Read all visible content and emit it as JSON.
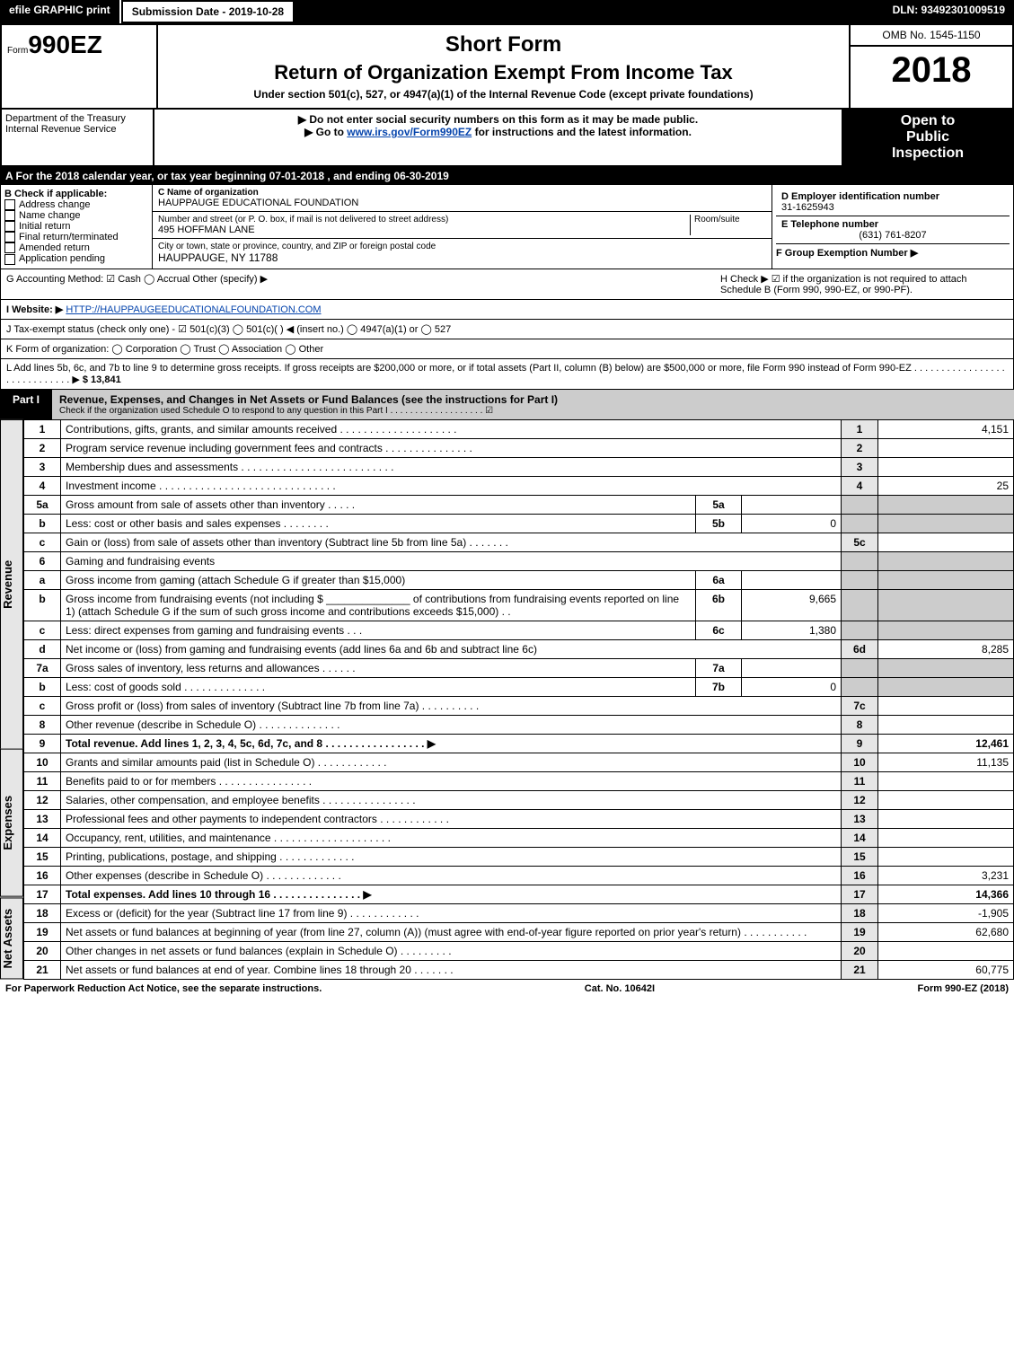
{
  "topbar": {
    "efile": "efile GRAPHIC print",
    "submission": "Submission Date - 2019-10-28",
    "dln": "DLN: 93492301009519"
  },
  "header": {
    "form_prefix": "Form",
    "form_num": "990EZ",
    "short_form": "Short Form",
    "main_title": "Return of Organization Exempt From Income Tax",
    "sub": "Under section 501(c), 527, or 4947(a)(1) of the Internal Revenue Code (except private foundations)",
    "omb": "OMB No. 1545-1150",
    "year": "2018"
  },
  "dept": {
    "left1": "Department of the Treasury",
    "left2": "Internal Revenue Service",
    "center1": "▶ Do not enter social security numbers on this form as it may be made public.",
    "center2_pre": "▶ Go to ",
    "center2_link": "www.irs.gov/Form990EZ",
    "center2_post": " for instructions and the latest information.",
    "right1": "Open to",
    "right2": "Public",
    "right3": "Inspection"
  },
  "rowA": {
    "text_pre": "A For the 2018 calendar year, or tax year beginning ",
    "begin": "07-01-2018",
    "text_mid": " , and ending ",
    "end": "06-30-2019"
  },
  "boxB": {
    "title": "B Check if applicable:",
    "items": [
      "Address change",
      "Name change",
      "Initial return",
      "Final return/terminated",
      "Amended return",
      "Application pending"
    ]
  },
  "boxC": {
    "c_label": "C Name of organization",
    "org": "HAUPPAUGE EDUCATIONAL FOUNDATION",
    "addr_label": "Number and street (or P. O. box, if mail is not delivered to street address)",
    "room": "Room/suite",
    "addr": "495 HOFFMAN LANE",
    "city_label": "City or town, state or province, country, and ZIP or foreign postal code",
    "city": "HAUPPAUGE, NY  11788"
  },
  "boxD": {
    "d_label": "D Employer identification number",
    "ein": "31-1625943",
    "e_label": "E Telephone number",
    "phone": "(631) 761-8207",
    "f_label": "F Group Exemption Number  ▶"
  },
  "rowG": {
    "g": "G Accounting Method:   ☑ Cash   ◯ Accrual   Other (specify) ▶",
    "h": "H   Check ▶  ☑  if the organization is not required to attach Schedule B (Form 990, 990-EZ, or 990-PF)."
  },
  "rowI": {
    "label": "I Website: ▶",
    "url": "HTTP://HAUPPAUGEEDUCATIONALFOUNDATION.COM"
  },
  "rowJ": "J Tax-exempt status (check only one) -  ☑ 501(c)(3)  ◯ 501(c)(  ) ◀ (insert no.)  ◯ 4947(a)(1) or  ◯ 527",
  "rowK": "K Form of organization:   ◯ Corporation   ◯ Trust   ◯ Association   ◯ Other",
  "rowL": {
    "text": "L Add lines 5b, 6c, and 7b to line 9 to determine gross receipts. If gross receipts are $200,000 or more, or if total assets (Part II, column (B) below) are $500,000 or more, file Form 990 instead of Form 990-EZ . . . . . . . . . . . . . . . . . . . . . . . . . . . . . ▶",
    "amount": "$ 13,841"
  },
  "partI": {
    "tab": "Part I",
    "title": "Revenue, Expenses, and Changes in Net Assets or Fund Balances (see the instructions for Part I)",
    "sub": "Check if the organization used Schedule O to respond to any question in this Part I . . . . . . . . . . . . . . . . . . .  ☑"
  },
  "sections": {
    "revenue": "Revenue",
    "expenses": "Expenses",
    "netassets": "Net Assets"
  },
  "lines": [
    {
      "sec": "revenue",
      "n": "1",
      "desc": "Contributions, gifts, grants, and similar amounts received . . . . . . . . . . . . . . . . . . . .",
      "ln": "1",
      "amt": "4,151"
    },
    {
      "sec": "revenue",
      "n": "2",
      "desc": "Program service revenue including government fees and contracts . . . . . . . . . . . . . . .",
      "ln": "2",
      "amt": ""
    },
    {
      "sec": "revenue",
      "n": "3",
      "desc": "Membership dues and assessments . . . . . . . . . . . . . . . . . . . . . . . . . .",
      "ln": "3",
      "amt": ""
    },
    {
      "sec": "revenue",
      "n": "4",
      "desc": "Investment income . . . . . . . . . . . . . . . . . . . . . . . . . . . . . .",
      "ln": "4",
      "amt": "25"
    },
    {
      "sec": "revenue",
      "n": "5a",
      "desc": "Gross amount from sale of assets other than inventory . . . . .",
      "in": "5a",
      "iv": "",
      "shaded": true
    },
    {
      "sec": "revenue",
      "n": "b",
      "desc": "Less: cost or other basis and sales expenses . . . . . . . .",
      "in": "5b",
      "iv": "0",
      "shaded": true
    },
    {
      "sec": "revenue",
      "n": "c",
      "desc": "Gain or (loss) from sale of assets other than inventory (Subtract line 5b from line 5a) . . . . . . .",
      "ln": "5c",
      "amt": ""
    },
    {
      "sec": "revenue",
      "n": "6",
      "desc": "Gaming and fundraising events",
      "shaded": true
    },
    {
      "sec": "revenue",
      "n": "a",
      "desc": "Gross income from gaming (attach Schedule G if greater than $15,000)",
      "in": "6a",
      "iv": "",
      "shaded": true
    },
    {
      "sec": "revenue",
      "n": "b",
      "desc": "Gross income from fundraising events (not including $ ______________ of contributions from fundraising events reported on line 1) (attach Schedule G if the sum of such gross income and contributions exceeds $15,000)   .  .",
      "in": "6b",
      "iv": "9,665",
      "shaded": true
    },
    {
      "sec": "revenue",
      "n": "c",
      "desc": "Less: direct expenses from gaming and fundraising events     .  .  .",
      "in": "6c",
      "iv": "1,380",
      "shaded": true
    },
    {
      "sec": "revenue",
      "n": "d",
      "desc": "Net income or (loss) from gaming and fundraising events (add lines 6a and 6b and subtract line 6c)",
      "ln": "6d",
      "amt": "8,285"
    },
    {
      "sec": "revenue",
      "n": "7a",
      "desc": "Gross sales of inventory, less returns and allowances . . . . . .",
      "in": "7a",
      "iv": "",
      "shaded": true
    },
    {
      "sec": "revenue",
      "n": "b",
      "desc": "Less: cost of goods sold       . . . . . . . . . . . . . .",
      "in": "7b",
      "iv": "0",
      "shaded": true
    },
    {
      "sec": "revenue",
      "n": "c",
      "desc": "Gross profit or (loss) from sales of inventory (Subtract line 7b from line 7a) . . . . . . . . . .",
      "ln": "7c",
      "amt": ""
    },
    {
      "sec": "revenue",
      "n": "8",
      "desc": "Other revenue (describe in Schedule O)                         . . . . . . . . . . . . . .",
      "ln": "8",
      "amt": ""
    },
    {
      "sec": "revenue",
      "n": "9",
      "desc": "Total revenue. Add lines 1, 2, 3, 4, 5c, 6d, 7c, and 8 . . . . . . . . . . . . . . . . .   ▶",
      "ln": "9",
      "amt": "12,461",
      "bold": true
    },
    {
      "sec": "expenses",
      "n": "10",
      "desc": "Grants and similar amounts paid (list in Schedule O)          . . . . . . . . . . . .",
      "ln": "10",
      "amt": "11,135"
    },
    {
      "sec": "expenses",
      "n": "11",
      "desc": "Benefits paid to or for members                  . . . . . . . . . . . . . . . .",
      "ln": "11",
      "amt": ""
    },
    {
      "sec": "expenses",
      "n": "12",
      "desc": "Salaries, other compensation, and employee benefits . . . . . . . . . . . . . . . .",
      "ln": "12",
      "amt": ""
    },
    {
      "sec": "expenses",
      "n": "13",
      "desc": "Professional fees and other payments to independent contractors . . . . . . . . . . . .",
      "ln": "13",
      "amt": ""
    },
    {
      "sec": "expenses",
      "n": "14",
      "desc": "Occupancy, rent, utilities, and maintenance . . . . . . . . . . . . . . . . . . . .",
      "ln": "14",
      "amt": ""
    },
    {
      "sec": "expenses",
      "n": "15",
      "desc": "Printing, publications, postage, and shipping               . . . . . . . . . . . . .",
      "ln": "15",
      "amt": ""
    },
    {
      "sec": "expenses",
      "n": "16",
      "desc": "Other expenses (describe in Schedule O)                  . . . . . . . . . . . . .",
      "ln": "16",
      "amt": "3,231"
    },
    {
      "sec": "expenses",
      "n": "17",
      "desc": "Total expenses. Add lines 10 through 16             . . . . . . . . . . . . . . .  ▶",
      "ln": "17",
      "amt": "14,366",
      "bold": true
    },
    {
      "sec": "netassets",
      "n": "18",
      "desc": "Excess or (deficit) for the year (Subtract line 17 from line 9)        . . . . . . . . . . . .",
      "ln": "18",
      "amt": "-1,905"
    },
    {
      "sec": "netassets",
      "n": "19",
      "desc": "Net assets or fund balances at beginning of year (from line 27, column (A)) (must agree with end-of-year figure reported on prior year's return)                    . . . . . . . . . . .",
      "ln": "19",
      "amt": "62,680"
    },
    {
      "sec": "netassets",
      "n": "20",
      "desc": "Other changes in net assets or fund balances (explain in Schedule O)    . . . . . . . . .",
      "ln": "20",
      "amt": ""
    },
    {
      "sec": "netassets",
      "n": "21",
      "desc": "Net assets or fund balances at end of year. Combine lines 18 through 20       . . . . . . .",
      "ln": "21",
      "amt": "60,775"
    }
  ],
  "footer": {
    "left": "For Paperwork Reduction Act Notice, see the separate instructions.",
    "center": "Cat. No. 10642I",
    "right": "Form 990-EZ (2018)"
  }
}
